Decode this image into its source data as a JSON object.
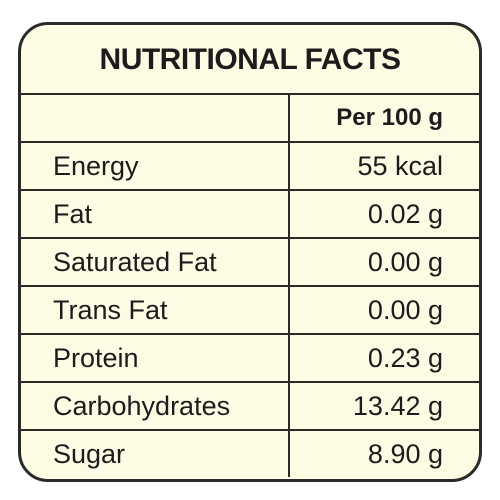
{
  "title": "NUTRITIONAL FACTS",
  "table": {
    "header": "Per 100 g",
    "rows": [
      [
        "Energy",
        "55 kcal"
      ],
      [
        "Fat",
        "0.02 g"
      ],
      [
        "Saturated Fat",
        "0.00 g"
      ],
      [
        "Trans Fat",
        "0.00 g"
      ],
      [
        "Protein",
        "0.23 g"
      ],
      [
        "Carbohydrates",
        "13.42 g"
      ],
      [
        "Sugar",
        "8.90 g"
      ]
    ]
  }
}
